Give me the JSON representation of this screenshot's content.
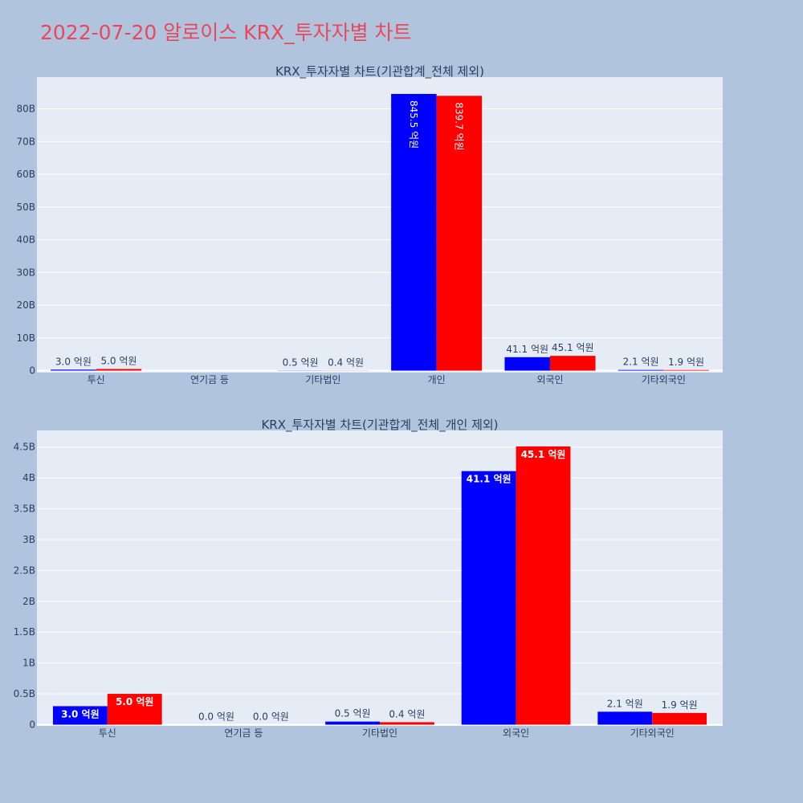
{
  "page": {
    "title": "2022-07-20 알로이스 KRX_투자자별 차트"
  },
  "colors": {
    "series_a": "#0000ff",
    "series_b": "#ff0000",
    "background": "#b0c4de",
    "plot_bg": "#e5ecf6",
    "title": "#e8485a"
  },
  "chart_data": [
    {
      "type": "bar",
      "title": "KRX_투자자별 차트(기관합계_전체 제외)",
      "categories": [
        "투신",
        "연기금 등",
        "기타법인",
        "개인",
        "외국인",
        "기타외국인"
      ],
      "series": [
        {
          "values": [
            0.3,
            0,
            0.05,
            84.55,
            4.11,
            0.21
          ],
          "labels": [
            "3.0 억원",
            "",
            "0.5 억원",
            "845.5 억원",
            "41.1 억원",
            "2.1 억원"
          ]
        },
        {
          "values": [
            0.5,
            0,
            0.04,
            83.97,
            4.51,
            0.19
          ],
          "labels": [
            "5.0 억원",
            "",
            "0.4 억원",
            "839.7 억원",
            "45.1 억원",
            "1.9 억원"
          ]
        }
      ],
      "yticks": [
        "0",
        "10B",
        "20B",
        "30B",
        "40B",
        "50B",
        "60B",
        "70B",
        "80B"
      ],
      "ytick_values": [
        0,
        10,
        20,
        30,
        40,
        50,
        60,
        70,
        80
      ],
      "ylim": [
        -0.6,
        89.7
      ],
      "grid": true,
      "legend": "none"
    },
    {
      "type": "bar",
      "title": "KRX_투자자별 차트(기관합계_전체_개인 제외)",
      "categories": [
        "투신",
        "연기금 등",
        "기타법인",
        "외국인",
        "기타외국인"
      ],
      "series": [
        {
          "values": [
            0.3,
            0,
            0.05,
            4.11,
            0.21
          ],
          "labels": [
            "3.0 억원",
            "0.0 억원",
            "0.5 억원",
            "41.1 억원",
            "2.1 억원"
          ]
        },
        {
          "values": [
            0.5,
            0,
            0.04,
            4.51,
            0.19
          ],
          "labels": [
            "5.0 억원",
            "0.0 억원",
            "0.4 억원",
            "45.1 억원",
            "1.9 억원"
          ]
        }
      ],
      "yticks": [
        "0",
        "0.5B",
        "1B",
        "1.5B",
        "2B",
        "2.5B",
        "3B",
        "3.5B",
        "4B",
        "4.5B"
      ],
      "ytick_values": [
        0,
        0.5,
        1,
        1.5,
        2,
        2.5,
        3,
        3.5,
        4,
        4.5
      ],
      "ylim": [
        -0.02,
        4.77
      ],
      "grid": true,
      "legend": "none"
    }
  ]
}
